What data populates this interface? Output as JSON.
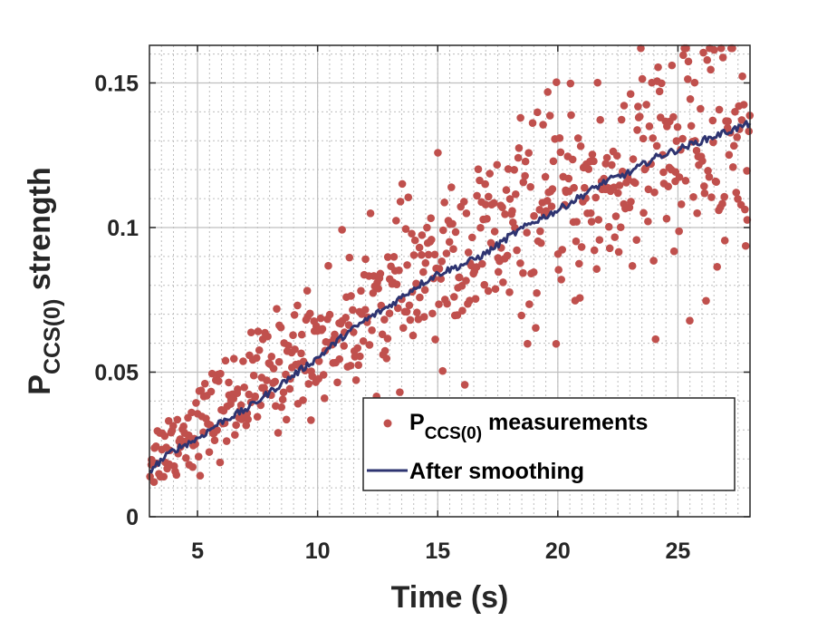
{
  "colors": {
    "scatter": "#c0504d",
    "line": "#2e3471",
    "axis": "#262626",
    "grid_major": "#bfbfbf",
    "grid_minor": "#bdbdbd"
  },
  "chart_data": {
    "type": "scatter",
    "title": "",
    "xlabel": "Time (s)",
    "ylabel": {
      "base": "P",
      "subscript": "CCS(0)",
      "suffix": " strength"
    },
    "xlim": [
      3,
      28
    ],
    "ylim": [
      0,
      0.163
    ],
    "xticks": [
      5,
      10,
      15,
      20,
      25
    ],
    "xtick_labels": [
      "5",
      "10",
      "15",
      "20",
      "25"
    ],
    "yticks": [
      0,
      0.05,
      0.1,
      0.15
    ],
    "ytick_labels": [
      "0",
      "0.05",
      "0.1",
      "0.15"
    ],
    "grid": true,
    "minor_grid": true,
    "legend": {
      "position": "bottom-right",
      "entries": [
        {
          "base": "P",
          "subscript": "CCS(0)",
          "suffix": " measurements"
        },
        {
          "base": "After smoothing",
          "subscript": "",
          "suffix": ""
        }
      ]
    },
    "series": [
      {
        "name": "P_CCS(0) measurements",
        "kind": "scatter",
        "trend": {
          "t0": 3,
          "v0": 0.02,
          "t1": 28,
          "v1": 0.135,
          "curvature": 0.02
        },
        "spread_start": 0.006,
        "spread_end": 0.024,
        "count": 620
      },
      {
        "name": "After smoothing",
        "kind": "line",
        "x": [
          3,
          4,
          5,
          6,
          7,
          8,
          9,
          10,
          11,
          12,
          13,
          14,
          15,
          16,
          17,
          18,
          19,
          20,
          21,
          22,
          23,
          24,
          25,
          26,
          27,
          28
        ],
        "y": [
          0.016,
          0.023,
          0.027,
          0.033,
          0.037,
          0.043,
          0.049,
          0.055,
          0.062,
          0.068,
          0.073,
          0.079,
          0.084,
          0.087,
          0.091,
          0.097,
          0.102,
          0.106,
          0.111,
          0.116,
          0.119,
          0.124,
          0.127,
          0.13,
          0.133,
          0.136
        ]
      }
    ]
  }
}
